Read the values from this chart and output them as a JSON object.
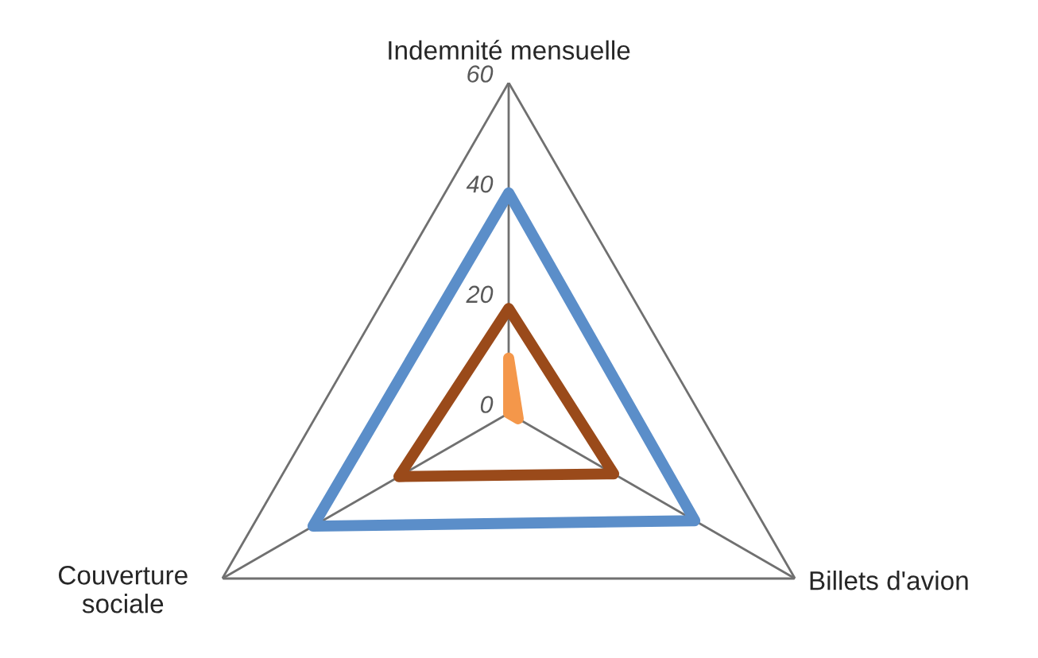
{
  "chart_data": {
    "type": "radar",
    "categories": [
      "Indemnité mensuelle",
      "Billets d'avion",
      "Couverture\nsociale"
    ],
    "series": [
      {
        "color": "#5b8ec9",
        "values": [
          40,
          39,
          41
        ]
      },
      {
        "color": "#9a4a1a",
        "values": [
          19,
          22,
          23
        ]
      },
      {
        "color": "#f4974a",
        "values": [
          10,
          2,
          0
        ]
      }
    ],
    "ylim": [
      0,
      60
    ],
    "yticks": [
      0,
      20,
      40,
      60
    ],
    "grid": "x",
    "marker": "none",
    "line_style": "solid"
  }
}
